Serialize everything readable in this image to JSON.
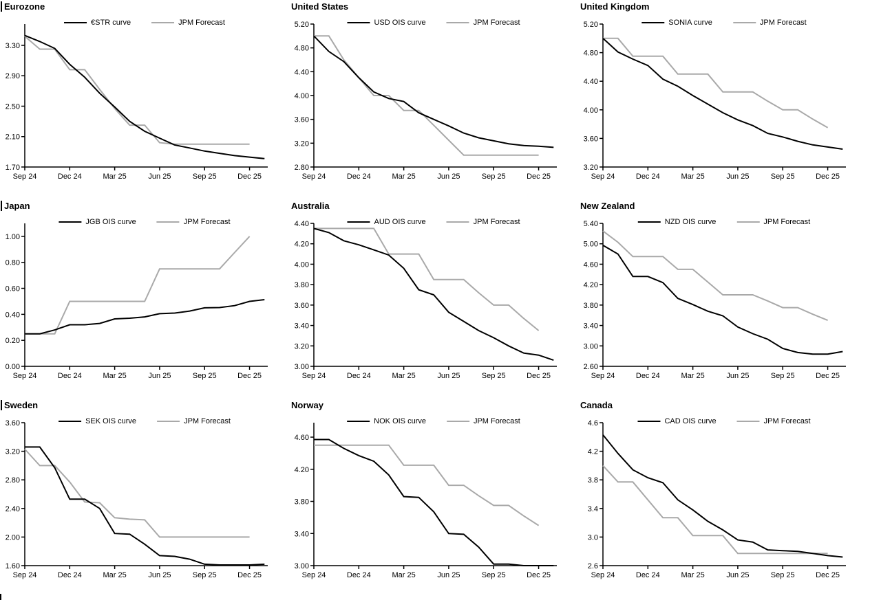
{
  "colors": {
    "ois_line": "#000000",
    "forecast_line": "#a9a9a9",
    "axis": "#000000",
    "text": "#000000",
    "background": "#ffffff"
  },
  "x_axis_tick_labels": [
    "Sep 24",
    "Dec 24",
    "Mar 25",
    "Jun 25",
    "Sep 25",
    "Dec 25"
  ],
  "x_months": [
    "Sep 24",
    "Oct 24",
    "Nov 24",
    "Dec 24",
    "Jan 25",
    "Feb 25",
    "Mar 25",
    "Apr 25",
    "May 25",
    "Jun 25",
    "Jul 25",
    "Aug 25",
    "Sep 25",
    "Oct 25",
    "Nov 25",
    "Dec 25",
    "Jan 26"
  ],
  "chart_data": [
    {
      "type": "line",
      "title": "Eurozone",
      "left_edge_bar": true,
      "ylim": [
        1.7,
        3.58
      ],
      "y_tick_labels": [
        "3.30",
        "2.90",
        "2.50",
        "2.10",
        "1.70"
      ],
      "y_ticks": [
        3.3,
        2.9,
        2.5,
        2.1,
        1.7
      ],
      "legend_position": "top-center",
      "series": [
        {
          "name": "€STR curve",
          "color": "#000000",
          "values": [
            3.43,
            3.35,
            3.26,
            3.05,
            2.88,
            2.67,
            2.49,
            2.3,
            2.17,
            2.08,
            1.99,
            1.95,
            1.91,
            1.88,
            1.85,
            1.83,
            1.81
          ]
        },
        {
          "name": "JPM Forecast",
          "color": "#a9a9a9",
          "values": [
            3.42,
            3.25,
            3.25,
            2.98,
            2.98,
            2.72,
            2.47,
            2.25,
            2.25,
            2.02,
            2.0,
            2.0,
            2.0,
            2.0,
            2.0,
            2.0
          ]
        }
      ]
    },
    {
      "type": "line",
      "title": "United States",
      "left_edge_bar": false,
      "ylim": [
        2.8,
        5.2
      ],
      "y_tick_labels": [
        "5.20",
        "4.80",
        "4.40",
        "4.00",
        "3.60",
        "3.20",
        "2.80"
      ],
      "y_ticks": [
        5.2,
        4.8,
        4.4,
        4.0,
        3.6,
        3.2,
        2.8
      ],
      "legend_position": "top-center",
      "series": [
        {
          "name": "USD OIS curve",
          "color": "#000000",
          "values": [
            5.0,
            4.74,
            4.57,
            4.3,
            4.06,
            3.95,
            3.9,
            3.71,
            3.6,
            3.49,
            3.37,
            3.29,
            3.24,
            3.19,
            3.16,
            3.15,
            3.13
          ]
        },
        {
          "name": "JPM Forecast",
          "color": "#a9a9a9",
          "values": [
            5.0,
            5.0,
            4.6,
            4.3,
            4.0,
            4.0,
            3.75,
            3.75,
            3.5,
            3.25,
            3.0,
            3.0,
            3.0,
            3.0,
            3.0,
            3.0
          ]
        }
      ]
    },
    {
      "type": "line",
      "title": "United Kingdom",
      "left_edge_bar": false,
      "ylim": [
        3.2,
        5.2
      ],
      "y_tick_labels": [
        "5.20",
        "4.80",
        "4.40",
        "4.00",
        "3.60",
        "3.20"
      ],
      "y_ticks": [
        5.2,
        4.8,
        4.4,
        4.0,
        3.6,
        3.2
      ],
      "legend_position": "top-center",
      "series": [
        {
          "name": "SONIA curve",
          "color": "#000000",
          "values": [
            5.0,
            4.81,
            4.71,
            4.62,
            4.43,
            4.33,
            4.2,
            4.08,
            3.96,
            3.86,
            3.78,
            3.67,
            3.62,
            3.56,
            3.51,
            3.48,
            3.45
          ]
        },
        {
          "name": "JPM Forecast",
          "color": "#a9a9a9",
          "values": [
            5.0,
            5.0,
            4.75,
            4.75,
            4.75,
            4.5,
            4.5,
            4.5,
            4.25,
            4.25,
            4.25,
            4.12,
            4.0,
            4.0,
            3.87,
            3.75
          ]
        }
      ]
    },
    {
      "type": "line",
      "title": "Japan",
      "left_edge_bar": true,
      "ylim": [
        0.0,
        1.1
      ],
      "y_tick_labels": [
        "1.00",
        "0.80",
        "0.60",
        "0.40",
        "0.20",
        "0.00"
      ],
      "y_ticks": [
        1.0,
        0.8,
        0.6,
        0.4,
        0.2,
        0.0
      ],
      "legend_position": "top-center",
      "series": [
        {
          "name": "JGB OIS curve",
          "color": "#000000",
          "values": [
            0.25,
            0.25,
            0.28,
            0.32,
            0.32,
            0.33,
            0.365,
            0.37,
            0.38,
            0.405,
            0.41,
            0.425,
            0.45,
            0.452,
            0.467,
            0.5,
            0.513
          ]
        },
        {
          "name": "JPM Forecast",
          "color": "#a9a9a9",
          "values": [
            0.25,
            0.25,
            0.25,
            0.5,
            0.5,
            0.5,
            0.5,
            0.5,
            0.5,
            0.75,
            0.75,
            0.75,
            0.75,
            0.75,
            0.875,
            1.0
          ]
        }
      ]
    },
    {
      "type": "line",
      "title": "Australia",
      "left_edge_bar": false,
      "ylim": [
        3.0,
        4.4
      ],
      "y_tick_labels": [
        "4.40",
        "4.20",
        "4.00",
        "3.80",
        "3.60",
        "3.40",
        "3.20",
        "3.00"
      ],
      "y_ticks": [
        4.4,
        4.2,
        4.0,
        3.8,
        3.6,
        3.4,
        3.2,
        3.0
      ],
      "legend_position": "top-center",
      "series": [
        {
          "name": "AUD OIS curve",
          "color": "#000000",
          "values": [
            4.35,
            4.31,
            4.23,
            4.19,
            4.14,
            4.09,
            3.96,
            3.75,
            3.7,
            3.53,
            3.44,
            3.35,
            3.28,
            3.2,
            3.13,
            3.11,
            3.06
          ]
        },
        {
          "name": "JPM Forecast",
          "color": "#a9a9a9",
          "values": [
            4.35,
            4.35,
            4.35,
            4.35,
            4.35,
            4.1,
            4.1,
            4.1,
            3.85,
            3.85,
            3.85,
            3.72,
            3.6,
            3.6,
            3.47,
            3.35
          ]
        }
      ]
    },
    {
      "type": "line",
      "title": "New Zealand",
      "left_edge_bar": false,
      "ylim": [
        2.6,
        5.4
      ],
      "y_tick_labels": [
        "5.40",
        "5.00",
        "4.60",
        "4.20",
        "3.80",
        "3.40",
        "3.00",
        "2.60"
      ],
      "y_ticks": [
        5.4,
        5.0,
        4.6,
        4.2,
        3.8,
        3.4,
        3.0,
        2.6
      ],
      "legend_position": "top-center",
      "series": [
        {
          "name": "NZD OIS curve",
          "color": "#000000",
          "values": [
            4.97,
            4.8,
            4.36,
            4.36,
            4.24,
            3.93,
            3.81,
            3.68,
            3.59,
            3.37,
            3.24,
            3.13,
            2.95,
            2.87,
            2.84,
            2.84,
            2.89
          ]
        },
        {
          "name": "JPM Forecast",
          "color": "#a9a9a9",
          "values": [
            5.25,
            5.03,
            4.75,
            4.75,
            4.75,
            4.5,
            4.5,
            4.25,
            4.0,
            4.0,
            4.0,
            3.88,
            3.75,
            3.75,
            3.62,
            3.5
          ]
        }
      ]
    },
    {
      "type": "line",
      "title": "Sweden",
      "left_edge_bar": true,
      "ylim": [
        1.6,
        3.6
      ],
      "y_tick_labels": [
        "3.60",
        "3.20",
        "2.80",
        "2.40",
        "2.00",
        "1.60"
      ],
      "y_ticks": [
        3.6,
        3.2,
        2.8,
        2.4,
        2.0,
        1.6
      ],
      "legend_position": "top-center",
      "series": [
        {
          "name": "SEK OIS curve",
          "color": "#000000",
          "values": [
            3.26,
            3.26,
            2.97,
            2.53,
            2.53,
            2.4,
            2.05,
            2.04,
            1.9,
            1.74,
            1.73,
            1.69,
            1.62,
            1.61,
            1.61,
            1.61,
            1.62
          ]
        },
        {
          "name": "JPM Forecast",
          "color": "#a9a9a9",
          "values": [
            3.23,
            3.0,
            3.0,
            2.77,
            2.49,
            2.48,
            2.27,
            2.25,
            2.24,
            2.0,
            2.0,
            2.0,
            2.0,
            2.0,
            2.0,
            2.0
          ]
        }
      ]
    },
    {
      "type": "line",
      "title": "Norway",
      "left_edge_bar": false,
      "ylim": [
        3.0,
        4.78
      ],
      "y_tick_labels": [
        "4.60",
        "4.20",
        "3.80",
        "3.40",
        "3.00"
      ],
      "y_ticks": [
        4.6,
        4.2,
        3.8,
        3.4,
        3.0
      ],
      "legend_position": "top-center",
      "series": [
        {
          "name": "NOK OIS curve",
          "color": "#000000",
          "values": [
            4.57,
            4.57,
            4.46,
            4.37,
            4.3,
            4.13,
            3.86,
            3.85,
            3.67,
            3.4,
            3.39,
            3.23,
            3.02,
            3.02,
            3.0,
            3.0,
            3.0
          ]
        },
        {
          "name": "JPM Forecast",
          "color": "#a9a9a9",
          "values": [
            4.5,
            4.5,
            4.5,
            4.5,
            4.5,
            4.5,
            4.25,
            4.25,
            4.25,
            4.0,
            4.0,
            3.87,
            3.75,
            3.75,
            3.62,
            3.5
          ]
        }
      ]
    },
    {
      "type": "line",
      "title": "Canada",
      "left_edge_bar": false,
      "ylim": [
        2.6,
        4.6
      ],
      "y_tick_labels": [
        "4.6",
        "4.2",
        "3.8",
        "3.4",
        "3.0",
        "2.6"
      ],
      "y_ticks": [
        4.6,
        4.2,
        3.8,
        3.4,
        3.0,
        2.6
      ],
      "legend_position": "top-center",
      "series": [
        {
          "name": "CAD OIS curve",
          "color": "#000000",
          "values": [
            4.43,
            4.17,
            3.94,
            3.83,
            3.76,
            3.52,
            3.38,
            3.22,
            3.1,
            2.96,
            2.93,
            2.82,
            2.81,
            2.8,
            2.77,
            2.74,
            2.72
          ]
        },
        {
          "name": "JPM Forecast",
          "color": "#a9a9a9",
          "values": [
            4.0,
            3.77,
            3.77,
            3.52,
            3.27,
            3.27,
            3.02,
            3.02,
            3.02,
            2.77,
            2.77,
            2.77,
            2.77,
            2.77,
            2.77,
            2.77
          ]
        }
      ]
    }
  ]
}
